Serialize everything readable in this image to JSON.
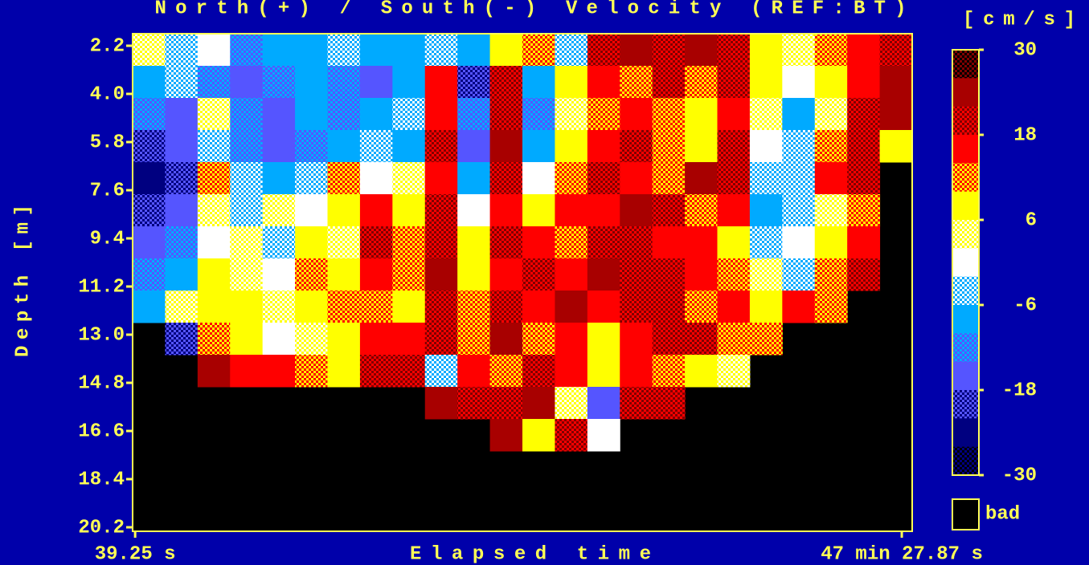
{
  "chart_data": {
    "type": "heatmap",
    "title": "North(+) / South(-) Velocity (REF:BT)",
    "x_label": "Elapsed time",
    "y_label": "Depth [m]",
    "colorbar_label": "[cm/s]",
    "bad_label": "bad",
    "background": "#0000aa",
    "axis_color": "#ffff55",
    "bad_color": "#000000",
    "xlim": [
      30,
      2886
    ],
    "ylim": [
      1.75,
      20.35
    ],
    "y_reversed": true,
    "xticks": [
      {
        "value": 39.25,
        "label": "39.25 s"
      },
      {
        "value": 2847.87,
        "label": "47 min 27.87 s"
      }
    ],
    "yticks": [
      2.2,
      {
        "value": 4,
        "label": "4.0"
      },
      5.8,
      7.6,
      9.4,
      11.2,
      {
        "value": 13,
        "label": "13.0"
      },
      14.8,
      16.6,
      18.4,
      20.2
    ],
    "clim": [
      -30,
      30
    ],
    "cticks": [
      30,
      18,
      6,
      -6,
      -18,
      -30
    ],
    "colorscale": [
      [
        "#800000",
        "#000000"
      ],
      [
        "#a80000",
        "#a80000"
      ],
      [
        "#ff0000",
        "#800000"
      ],
      [
        "#ff0000",
        "#ff0000"
      ],
      [
        "#ff0000",
        "#ffff00"
      ],
      [
        "#ffff00",
        "#ffff00"
      ],
      [
        "#ffff00",
        "#ffffff"
      ],
      [
        "#ffffff",
        "#ffffff"
      ],
      [
        "#ffffff",
        "#00aaff"
      ],
      [
        "#00aaff",
        "#00aaff"
      ],
      [
        "#00aaff",
        "#5555ff"
      ],
      [
        "#5555ff",
        "#5555ff"
      ],
      [
        "#5555ff",
        "#000080"
      ],
      [
        "#000080",
        "#000080"
      ],
      [
        "#000080",
        "#000000"
      ]
    ],
    "x_bins": [
      30,
      149,
      268,
      387,
      506,
      625,
      744,
      863,
      982,
      1101,
      1220,
      1339,
      1458,
      1577,
      1696,
      1815,
      1934,
      2053,
      2172,
      2291,
      2410,
      2529,
      2648,
      2767,
      2886
    ],
    "y_bins": [
      1.75,
      2.95,
      4.15,
      5.35,
      6.55,
      7.75,
      8.95,
      10.15,
      11.35,
      12.55,
      13.75,
      14.95,
      16.15,
      17.35
    ],
    "z": [
      [
        5,
        -5,
        0,
        -10,
        -8,
        -6,
        -4,
        -8,
        -6,
        -4,
        -8,
        8,
        14,
        -2,
        22,
        26,
        20,
        24,
        22,
        10,
        6,
        12,
        16,
        22
      ],
      [
        -6,
        -4,
        -12,
        -14,
        -10,
        -8,
        -10,
        -14,
        -6,
        16,
        -18,
        20,
        -8,
        8,
        18,
        14,
        22,
        12,
        20,
        8,
        2,
        10,
        16,
        24
      ],
      [
        -10,
        -14,
        4,
        -12,
        -16,
        -8,
        -10,
        -6,
        -4,
        18,
        -12,
        22,
        -10,
        6,
        12,
        18,
        14,
        10,
        16,
        4,
        -6,
        6,
        20,
        26
      ],
      [
        -18,
        -16,
        -2,
        -10,
        -14,
        -10,
        -8,
        -2,
        -6,
        20,
        -14,
        24,
        -8,
        10,
        16,
        22,
        12,
        8,
        20,
        2,
        -2,
        14,
        22,
        10
      ],
      [
        -24,
        -18,
        14,
        -4,
        -8,
        -2,
        12,
        2,
        4,
        18,
        -6,
        22,
        2,
        12,
        20,
        18,
        14,
        24,
        22,
        -2,
        -4,
        18,
        20,
        null
      ],
      [
        -20,
        -14,
        6,
        -2,
        4,
        0,
        10,
        16,
        8,
        20,
        2,
        18,
        8,
        16,
        18,
        24,
        20,
        12,
        16,
        -6,
        -2,
        6,
        12,
        null
      ],
      [
        -16,
        -10,
        2,
        6,
        -2,
        10,
        4,
        20,
        14,
        22,
        8,
        20,
        18,
        14,
        22,
        20,
        18,
        16,
        10,
        -4,
        0,
        8,
        18,
        null
      ],
      [
        -12,
        -6,
        8,
        4,
        0,
        12,
        8,
        16,
        12,
        24,
        10,
        16,
        20,
        18,
        24,
        22,
        20,
        18,
        12,
        4,
        -2,
        14,
        20,
        null
      ],
      [
        -8,
        4,
        10,
        8,
        6,
        8,
        12,
        14,
        10,
        22,
        14,
        20,
        16,
        24,
        18,
        20,
        22,
        14,
        18,
        10,
        16,
        12,
        null,
        null
      ],
      [
        null,
        -20,
        14,
        10,
        2,
        6,
        8,
        16,
        18,
        20,
        12,
        24,
        14,
        18,
        10,
        16,
        20,
        22,
        12,
        14,
        null,
        null,
        null,
        null
      ],
      [
        null,
        null,
        24,
        16,
        18,
        12,
        8,
        20,
        22,
        -4,
        18,
        14,
        20,
        16,
        8,
        18,
        12,
        10,
        6,
        null,
        null,
        null,
        null,
        null
      ],
      [
        null,
        null,
        null,
        null,
        null,
        null,
        null,
        null,
        null,
        24,
        20,
        22,
        24,
        6,
        -14,
        20,
        22,
        null,
        null,
        null,
        null,
        null,
        null,
        null
      ],
      [
        null,
        null,
        null,
        null,
        null,
        null,
        null,
        null,
        null,
        null,
        null,
        26,
        8,
        22,
        2,
        null,
        null,
        null,
        null,
        null,
        null,
        null,
        null,
        null
      ]
    ]
  }
}
